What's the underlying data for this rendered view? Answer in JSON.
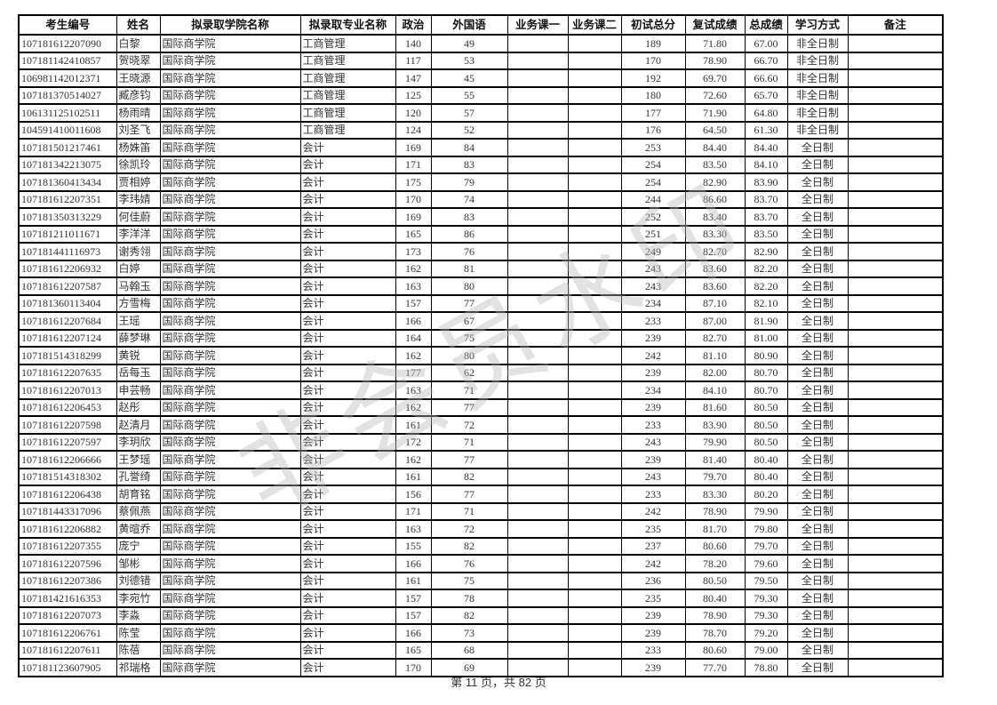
{
  "colors": {
    "border": "#000000",
    "text": "#333333",
    "watermark": "#b9b9b9",
    "page_background": "#ffffff"
  },
  "watermark": "非会员水印",
  "footer": {
    "text": "第 11 页，共 82 页"
  },
  "table": {
    "headers": [
      "考生编号",
      "姓名",
      "拟录取学院名称",
      "拟录取专业名称",
      "政治",
      "外国语",
      "业务课一",
      "业务课二",
      "初试总分",
      "复试成绩",
      "总成绩",
      "学习方式",
      "备注"
    ],
    "rows": [
      [
        "107181612207090",
        "白黎",
        "国际商学院",
        "工商管理",
        "140",
        "49",
        "",
        "",
        "189",
        "71.80",
        "67.00",
        "非全日制",
        ""
      ],
      [
        "107181142410857",
        "贺晓翠",
        "国际商学院",
        "工商管理",
        "117",
        "53",
        "",
        "",
        "170",
        "78.90",
        "66.70",
        "非全日制",
        ""
      ],
      [
        "106981142012371",
        "王晓源",
        "国际商学院",
        "工商管理",
        "147",
        "45",
        "",
        "",
        "192",
        "69.70",
        "66.60",
        "非全日制",
        ""
      ],
      [
        "107181370514027",
        "臧彦钧",
        "国际商学院",
        "工商管理",
        "125",
        "55",
        "",
        "",
        "180",
        "72.60",
        "65.70",
        "非全日制",
        ""
      ],
      [
        "106131125102511",
        "杨雨晴",
        "国际商学院",
        "工商管理",
        "120",
        "57",
        "",
        "",
        "177",
        "71.90",
        "64.80",
        "非全日制",
        ""
      ],
      [
        "104591410011608",
        "刘圣飞",
        "国际商学院",
        "工商管理",
        "124",
        "52",
        "",
        "",
        "176",
        "64.50",
        "61.30",
        "非全日制",
        ""
      ],
      [
        "107181501217461",
        "杨姝笛",
        "国际商学院",
        "会计",
        "169",
        "84",
        "",
        "",
        "253",
        "84.40",
        "84.40",
        "全日制",
        ""
      ],
      [
        "107181342213075",
        "徐凯玲",
        "国际商学院",
        "会计",
        "171",
        "83",
        "",
        "",
        "254",
        "83.50",
        "84.10",
        "全日制",
        ""
      ],
      [
        "107181360413434",
        "贾相婷",
        "国际商学院",
        "会计",
        "175",
        "79",
        "",
        "",
        "254",
        "82.90",
        "83.90",
        "全日制",
        ""
      ],
      [
        "107181612207351",
        "李玮婧",
        "国际商学院",
        "会计",
        "170",
        "74",
        "",
        "",
        "244",
        "86.60",
        "83.70",
        "全日制",
        ""
      ],
      [
        "107181350313229",
        "何佳蔚",
        "国际商学院",
        "会计",
        "169",
        "83",
        "",
        "",
        "252",
        "83.40",
        "83.70",
        "全日制",
        ""
      ],
      [
        "107181211011671",
        "李洋洋",
        "国际商学院",
        "会计",
        "165",
        "86",
        "",
        "",
        "251",
        "83.30",
        "83.50",
        "全日制",
        ""
      ],
      [
        "107181441116973",
        "谢秀翎",
        "国际商学院",
        "会计",
        "173",
        "76",
        "",
        "",
        "249",
        "82.70",
        "82.90",
        "全日制",
        ""
      ],
      [
        "107181612206932",
        "白婷",
        "国际商学院",
        "会计",
        "162",
        "81",
        "",
        "",
        "243",
        "83.60",
        "82.20",
        "全日制",
        ""
      ],
      [
        "107181612207587",
        "马翰玉",
        "国际商学院",
        "会计",
        "163",
        "80",
        "",
        "",
        "243",
        "83.60",
        "82.20",
        "全日制",
        ""
      ],
      [
        "107181360113404",
        "方雪梅",
        "国际商学院",
        "会计",
        "157",
        "77",
        "",
        "",
        "234",
        "87.10",
        "82.10",
        "全日制",
        ""
      ],
      [
        "107181612207684",
        "王瑶",
        "国际商学院",
        "会计",
        "166",
        "67",
        "",
        "",
        "233",
        "87.00",
        "81.90",
        "全日制",
        ""
      ],
      [
        "107181612207124",
        "薛梦琳",
        "国际商学院",
        "会计",
        "164",
        "75",
        "",
        "",
        "239",
        "82.70",
        "81.00",
        "全日制",
        ""
      ],
      [
        "107181514318299",
        "黄锐",
        "国际商学院",
        "会计",
        "162",
        "80",
        "",
        "",
        "242",
        "81.10",
        "80.90",
        "全日制",
        ""
      ],
      [
        "107181612207635",
        "岳每玉",
        "国际商学院",
        "会计",
        "177",
        "62",
        "",
        "",
        "239",
        "82.00",
        "80.70",
        "全日制",
        ""
      ],
      [
        "107181612207013",
        "申芸畅",
        "国际商学院",
        "会计",
        "163",
        "71",
        "",
        "",
        "234",
        "84.10",
        "80.70",
        "全日制",
        ""
      ],
      [
        "107181612206453",
        "赵彤",
        "国际商学院",
        "会计",
        "162",
        "77",
        "",
        "",
        "239",
        "81.60",
        "80.50",
        "全日制",
        ""
      ],
      [
        "107181612207598",
        "赵清月",
        "国际商学院",
        "会计",
        "161",
        "72",
        "",
        "",
        "233",
        "83.90",
        "80.50",
        "全日制",
        ""
      ],
      [
        "107181612207597",
        "李玥欣",
        "国际商学院",
        "会计",
        "172",
        "71",
        "",
        "",
        "243",
        "79.90",
        "80.50",
        "全日制",
        ""
      ],
      [
        "107181612206666",
        "王梦瑶",
        "国际商学院",
        "会计",
        "162",
        "77",
        "",
        "",
        "239",
        "81.40",
        "80.40",
        "全日制",
        ""
      ],
      [
        "107181514318302",
        "孔誉绮",
        "国际商学院",
        "会计",
        "161",
        "82",
        "",
        "",
        "243",
        "79.70",
        "80.40",
        "全日制",
        ""
      ],
      [
        "107181612206438",
        "胡育铭",
        "国际商学院",
        "会计",
        "156",
        "77",
        "",
        "",
        "233",
        "83.30",
        "80.20",
        "全日制",
        ""
      ],
      [
        "107181443317096",
        "蔡佩燕",
        "国际商学院",
        "会计",
        "171",
        "71",
        "",
        "",
        "242",
        "78.90",
        "79.90",
        "全日制",
        ""
      ],
      [
        "107181612206882",
        "黄暄乔",
        "国际商学院",
        "会计",
        "163",
        "72",
        "",
        "",
        "235",
        "81.70",
        "79.80",
        "全日制",
        ""
      ],
      [
        "107181612207355",
        "庞宁",
        "国际商学院",
        "会计",
        "155",
        "82",
        "",
        "",
        "237",
        "80.60",
        "79.70",
        "全日制",
        ""
      ],
      [
        "107181612207596",
        "邹彬",
        "国际商学院",
        "会计",
        "166",
        "76",
        "",
        "",
        "242",
        "78.20",
        "79.60",
        "全日制",
        ""
      ],
      [
        "107181612207386",
        "刘德错",
        "国际商学院",
        "会计",
        "161",
        "75",
        "",
        "",
        "236",
        "80.50",
        "79.50",
        "全日制",
        ""
      ],
      [
        "107181421616353",
        "李宛竹",
        "国际商学院",
        "会计",
        "157",
        "78",
        "",
        "",
        "235",
        "80.40",
        "79.30",
        "全日制",
        ""
      ],
      [
        "107181612207073",
        "李淼",
        "国际商学院",
        "会计",
        "157",
        "82",
        "",
        "",
        "239",
        "78.90",
        "79.30",
        "全日制",
        ""
      ],
      [
        "107181612206761",
        "陈莹",
        "国际商学院",
        "会计",
        "166",
        "73",
        "",
        "",
        "239",
        "78.70",
        "79.20",
        "全日制",
        ""
      ],
      [
        "107181612207611",
        "陈蓓",
        "国际商学院",
        "会计",
        "165",
        "68",
        "",
        "",
        "233",
        "80.60",
        "79.00",
        "全日制",
        ""
      ],
      [
        "107181123607905",
        "祁瑞格",
        "国际商学院",
        "会计",
        "170",
        "69",
        "",
        "",
        "239",
        "77.70",
        "78.80",
        "全日制",
        ""
      ]
    ]
  }
}
